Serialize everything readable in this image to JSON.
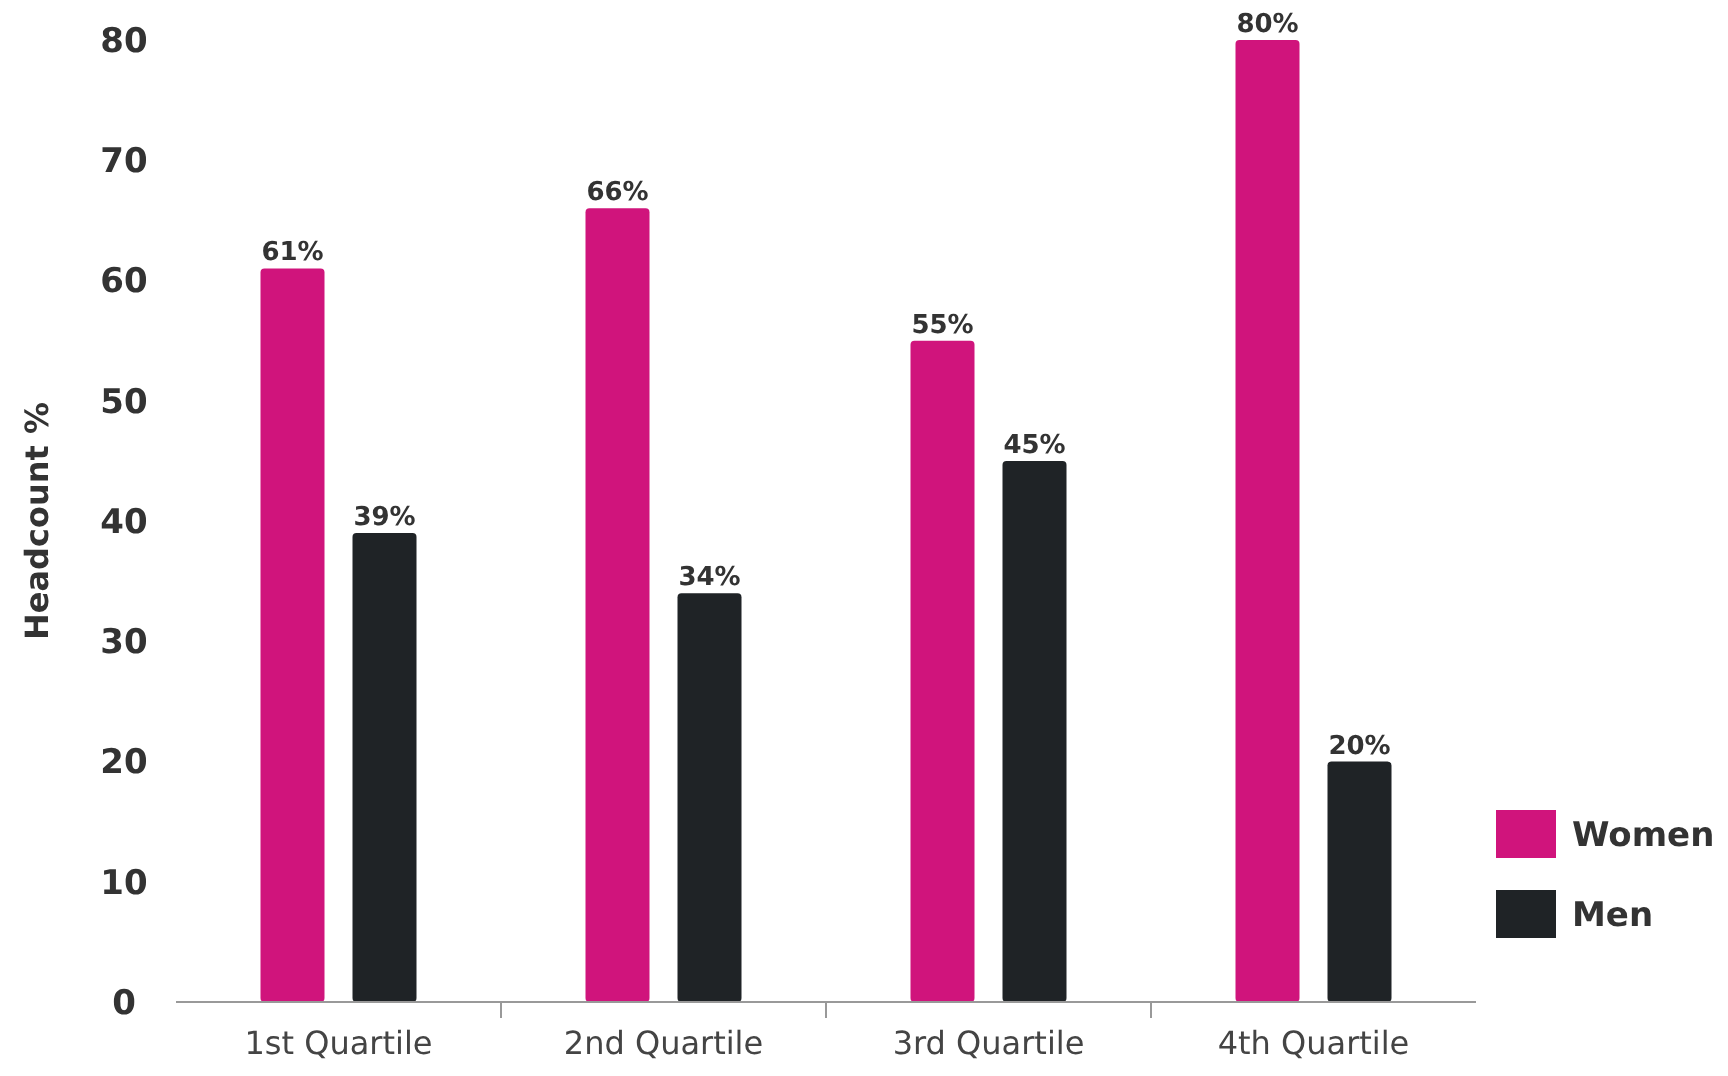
{
  "chart_data": {
    "type": "bar",
    "ylabel": "Headcount %",
    "categories": [
      "1st Quartile",
      "2nd Quartile",
      "3rd Quartile",
      "4th Quartile"
    ],
    "series": [
      {
        "name": "Women",
        "color": "#d0147c",
        "values": [
          61,
          66,
          55,
          80
        ],
        "value_labels": [
          "61%",
          "66%",
          "55%",
          "80%"
        ]
      },
      {
        "name": "Men",
        "color": "#1f2326",
        "values": [
          39,
          34,
          45,
          20
        ],
        "value_labels": [
          "39%",
          "34%",
          "45%",
          "20%"
        ]
      }
    ],
    "ylim": [
      0,
      80
    ],
    "yticks": [
      0,
      10,
      20,
      30,
      40,
      50,
      60,
      70,
      80
    ],
    "grid": false,
    "legend": "right"
  }
}
